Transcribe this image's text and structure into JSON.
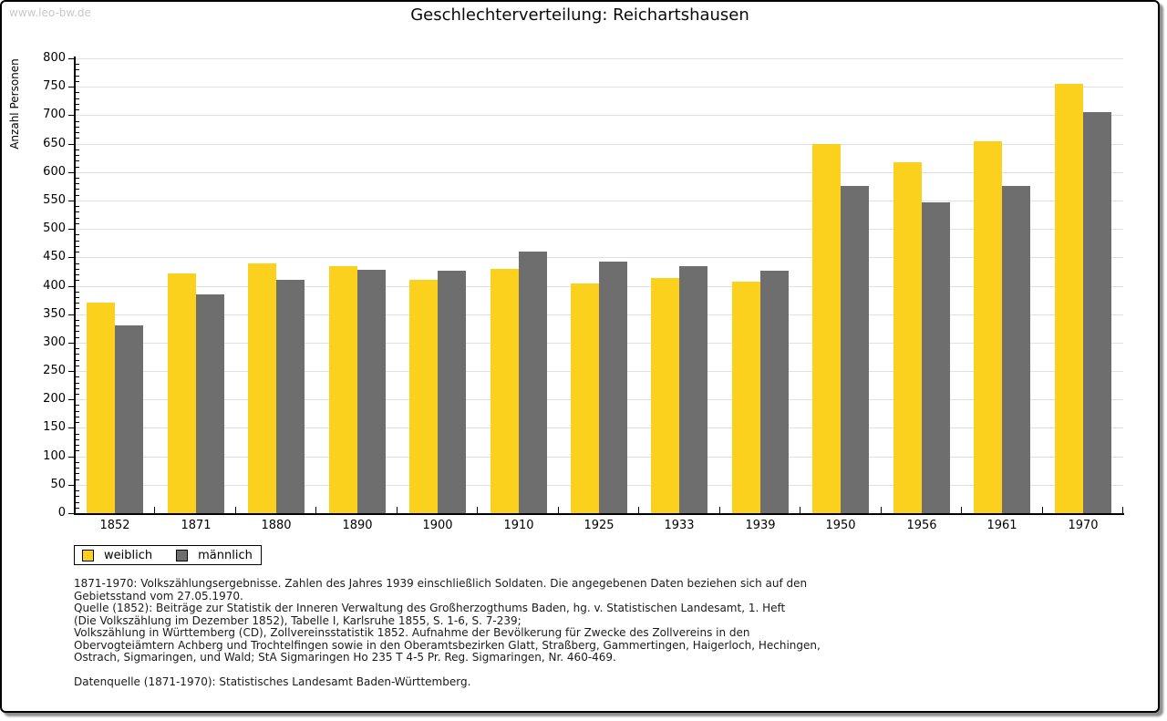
{
  "watermark": "www.leo-bw.de",
  "chart_data": {
    "type": "bar",
    "title": "Geschlechterverteilung: Reichartshausen",
    "xlabel": "",
    "ylabel": "Anzahl Personen",
    "ylim": [
      0,
      800
    ],
    "ytick_step": 50,
    "y_minor_step": 10,
    "grid": true,
    "legend_position": "bottom-left",
    "categories": [
      "1852",
      "1871",
      "1880",
      "1890",
      "1900",
      "1910",
      "1925",
      "1933",
      "1939",
      "1950",
      "1956",
      "1961",
      "1970"
    ],
    "series": [
      {
        "name": "weiblich",
        "color": "#fcd11d",
        "values": [
          371,
          421,
          440,
          435,
          411,
          430,
          404,
          413,
          407,
          650,
          617,
          654,
          755
        ]
      },
      {
        "name": "männlich",
        "color": "#6e6e6e",
        "values": [
          331,
          385,
          411,
          428,
          426,
          460,
          443,
          435,
          426,
          575,
          547,
          575,
          706
        ]
      }
    ]
  },
  "footnotes": {
    "lines": [
      "1871-1970: Volkszählungsergebnisse. Zahlen des Jahres 1939 einschließlich Soldaten. Die angegebenen Daten beziehen sich auf den",
      "Gebietsstand vom 27.05.1970.",
      "Quelle (1852): Beiträge zur Statistik der Inneren Verwaltung des Großherzogthums Baden, hg. v. Statistischen Landesamt, 1. Heft",
      "(Die Volkszählung im Dezember 1852), Tabelle I, Karlsruhe 1855, S. 1-6, S. 7-239;",
      "Volkszählung in Württemberg (CD), Zollvereinsstatistik 1852. Aufnahme der Bevölkerung für Zwecke des Zollvereins in den",
      "Obervogteiämtern Achberg und Trochtelfingen sowie in den Oberamtsbezirken Glatt, Straßberg, Gammertingen, Haigerloch, Hechingen,",
      "Ostrach, Sigmaringen, und Wald; StA Sigmaringen Ho 235 T 4-5 Pr. Reg. Sigmaringen, Nr. 460-469."
    ],
    "datasource": "Datenquelle (1871-1970): Statistisches Landesamt Baden-Württemberg."
  }
}
